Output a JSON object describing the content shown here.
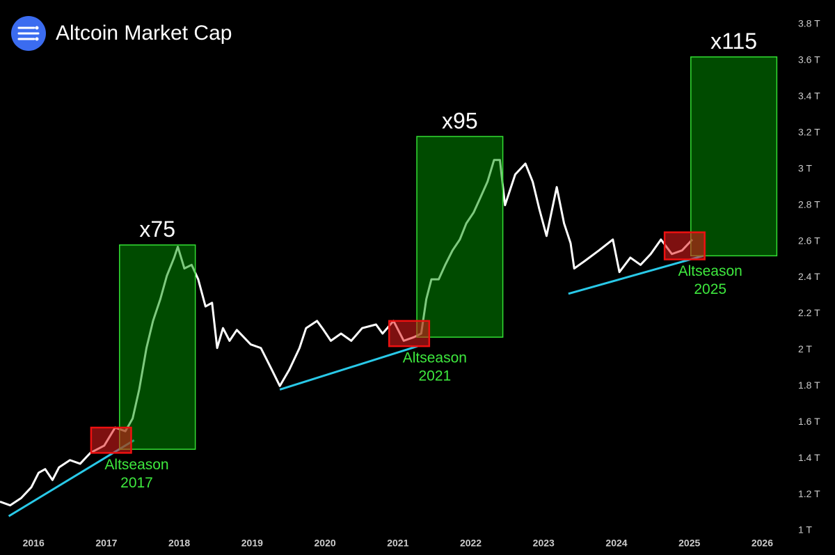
{
  "chart_data": {
    "type": "line",
    "title": "Altcoin Market Cap",
    "x": [
      2015.54,
      2015.68,
      2015.83,
      2015.97,
      2016.07,
      2016.16,
      2016.26,
      2016.35,
      2016.5,
      2016.64,
      2016.78,
      2016.97,
      2017.12,
      2017.26,
      2017.36,
      2017.45,
      2017.55,
      2017.64,
      2017.74,
      2017.83,
      2017.93,
      2017.98,
      2018.07,
      2018.17,
      2018.26,
      2018.36,
      2018.45,
      2018.52,
      2018.6,
      2018.69,
      2018.79,
      2018.98,
      2019.12,
      2019.27,
      2019.38,
      2019.51,
      2019.65,
      2019.74,
      2019.89,
      2019.98,
      2020.08,
      2020.22,
      2020.36,
      2020.51,
      2020.7,
      2020.79,
      2020.94,
      2021.08,
      2021.22,
      2021.32,
      2021.39,
      2021.46,
      2021.56,
      2021.65,
      2021.75,
      2021.85,
      2021.94,
      2022.04,
      2022.13,
      2022.23,
      2022.32,
      2022.4,
      2022.47,
      2022.61,
      2022.75,
      2022.85,
      2022.94,
      2023.04,
      2023.18,
      2023.28,
      2023.37,
      2023.42,
      2023.56,
      2023.76,
      2023.95,
      2024.04,
      2024.19,
      2024.33,
      2024.47,
      2024.61,
      2024.76,
      2024.9,
      2025.04
    ],
    "series": [
      {
        "color": "#ffffff",
        "values": [
          1.16,
          1.14,
          1.18,
          1.24,
          1.32,
          1.34,
          1.28,
          1.35,
          1.39,
          1.37,
          1.43,
          1.47,
          1.57,
          1.55,
          1.62,
          1.78,
          2.01,
          2.16,
          2.28,
          2.41,
          2.51,
          2.57,
          2.45,
          2.47,
          2.39,
          2.24,
          2.26,
          2.01,
          2.12,
          2.05,
          2.11,
          2.03,
          2.01,
          1.89,
          1.8,
          1.89,
          2.01,
          2.12,
          2.16,
          2.11,
          2.05,
          2.09,
          2.05,
          2.12,
          2.14,
          2.09,
          2.16,
          2.05,
          2.07,
          2.09,
          2.28,
          2.39,
          2.39,
          2.47,
          2.55,
          2.61,
          2.7,
          2.76,
          2.84,
          2.93,
          3.05,
          3.05,
          2.8,
          2.97,
          3.03,
          2.93,
          2.78,
          2.63,
          2.9,
          2.7,
          2.59,
          2.45,
          2.49,
          2.55,
          2.61,
          2.43,
          2.51,
          2.47,
          2.53,
          2.61,
          2.53,
          2.55,
          2.61
        ]
      }
    ],
    "xlim": [
      2015.54,
      2026.33
    ],
    "ylim": [
      1,
      3.8
    ],
    "xticks": [
      2016,
      2017,
      2018,
      2019,
      2020,
      2021,
      2022,
      2023,
      2024,
      2025,
      2026
    ],
    "yticks": [
      {
        "value": 1,
        "label": "1 T"
      },
      {
        "value": 1.2,
        "label": "1.2 T"
      },
      {
        "value": 1.4,
        "label": "1.4 T"
      },
      {
        "value": 1.6,
        "label": "1.6 T"
      },
      {
        "value": 1.8,
        "label": "1.8 T"
      },
      {
        "value": 2,
        "label": "2 T"
      },
      {
        "value": 2.2,
        "label": "2.2 T"
      },
      {
        "value": 2.4,
        "label": "2.4 T"
      },
      {
        "value": 2.6,
        "label": "2.6 T"
      },
      {
        "value": 2.8,
        "label": "2.8 T"
      },
      {
        "value": 3,
        "label": "3 T"
      },
      {
        "value": 3.2,
        "label": "3.2 T"
      },
      {
        "value": 3.4,
        "label": "3.4 T"
      },
      {
        "value": 3.6,
        "label": "3.6 T"
      },
      {
        "value": 3.8,
        "label": "3.8 T"
      }
    ],
    "trendlines": [
      {
        "color": "#29c9e8",
        "x": [
          2015.66,
          2017.38
        ],
        "y": [
          1.08,
          1.5
        ]
      },
      {
        "color": "#29c9e8",
        "x": [
          2019.38,
          2021.27
        ],
        "y": [
          1.78,
          2.02
        ]
      },
      {
        "color": "#29c9e8",
        "x": [
          2023.34,
          2025.19
        ],
        "y": [
          2.31,
          2.52
        ]
      }
    ],
    "gain_boxes": [
      {
        "label": "x75",
        "color": "#33dd33",
        "x": [
          2017.18,
          2018.22
        ],
        "y": [
          1.45,
          2.58
        ]
      },
      {
        "label": "x95",
        "color": "#33dd33",
        "x": [
          2021.26,
          2022.44
        ],
        "y": [
          2.07,
          3.18
        ]
      },
      {
        "label": "x115",
        "color": "#33dd33",
        "x": [
          2025.02,
          2026.2
        ],
        "y": [
          2.52,
          3.62
        ]
      }
    ],
    "season_boxes": [
      {
        "label": [
          "Altseason",
          "2017"
        ],
        "color": "#ee1111",
        "x": [
          2016.79,
          2017.34
        ],
        "y": [
          1.43,
          1.57
        ]
      },
      {
        "label": [
          "Altseason",
          "2021"
        ],
        "color": "#ee1111",
        "x": [
          2020.88,
          2021.43
        ],
        "y": [
          2.02,
          2.16
        ]
      },
      {
        "label": [
          "Altseason",
          "2025"
        ],
        "color": "#ee1111",
        "x": [
          2024.66,
          2025.21
        ],
        "y": [
          2.5,
          2.65
        ]
      }
    ]
  }
}
